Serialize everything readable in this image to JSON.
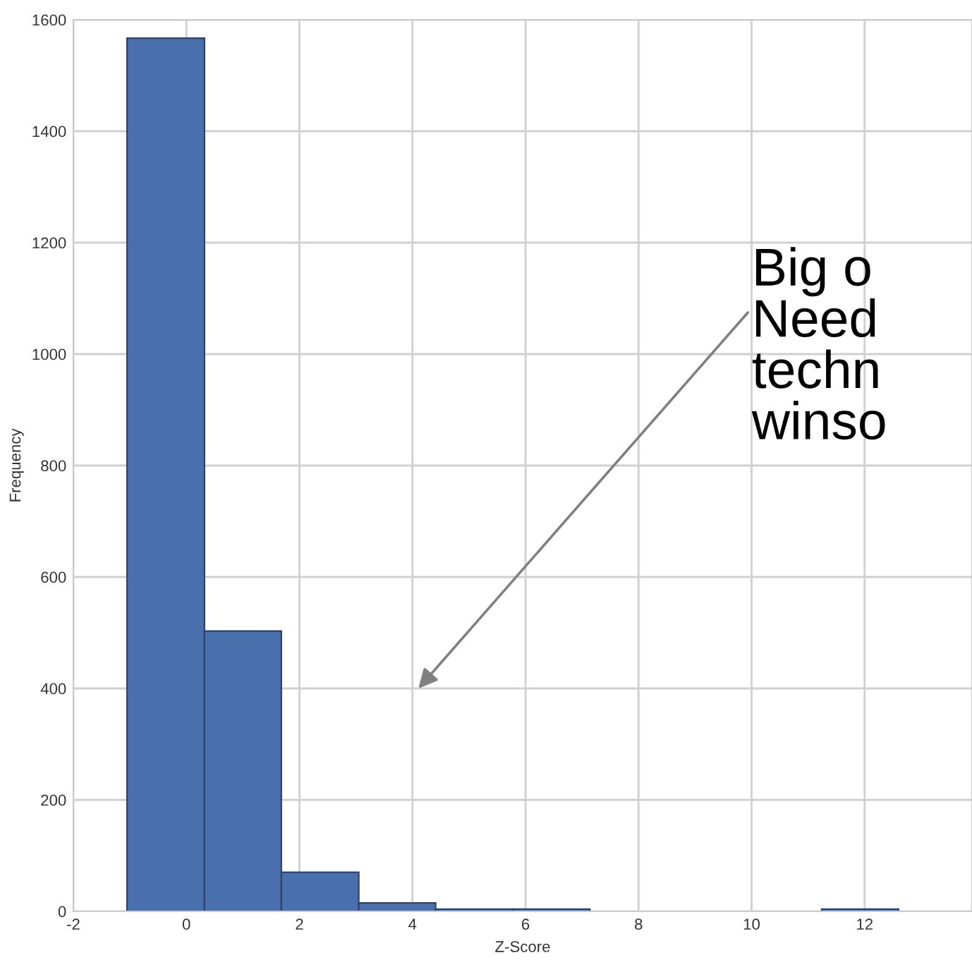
{
  "chart_data": {
    "type": "histogram",
    "xlabel": "Z-Score",
    "ylabel": "Frequency",
    "bins": [
      -1.05,
      0.32,
      1.68,
      3.05,
      4.41,
      5.78,
      7.14,
      11.24,
      12.6
    ],
    "values": [
      1567,
      503,
      70,
      15,
      4,
      4,
      0,
      4
    ],
    "color": "#4a6fad",
    "xlim": [
      -2,
      13.9
    ],
    "xticks": [
      -2,
      0,
      2,
      4,
      6,
      8,
      10,
      12
    ],
    "ylim": [
      0,
      1600
    ],
    "yticks": [
      0,
      200,
      400,
      600,
      800,
      1000,
      1200,
      1400,
      1600
    ],
    "grid": true,
    "annotations": [
      "Big o\nNeed\ntechn\nwinso"
    ]
  }
}
